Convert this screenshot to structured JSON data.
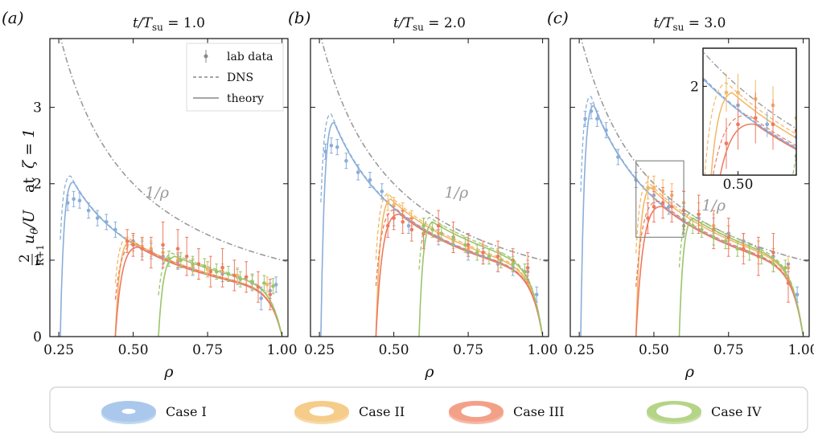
{
  "figure": {
    "ylabel": "2/(R+1) uθ/U  at  ζ = 1",
    "xlabel": "ρ",
    "legend": [
      "lab data",
      "DNS",
      "theory"
    ],
    "annotation": "1/ρ"
  },
  "colors": {
    "case_I": "#8aaed8",
    "case_II": "#f2b766",
    "case_III": "#ee7a60",
    "case_IV": "#9cc46a",
    "reference": "#9a9a9a",
    "legend_gray": "#888888"
  },
  "bottom_legend": {
    "cases": [
      {
        "label": "Case I",
        "color": "#aac8ec",
        "inner": 0.25
      },
      {
        "label": "Case II",
        "color": "#f6cc8a",
        "inner": 0.45
      },
      {
        "label": "Case III",
        "color": "#f3a088",
        "inner": 0.55
      },
      {
        "label": "Case IV",
        "color": "#b5d487",
        "inner": 0.65
      }
    ]
  },
  "chart_data": [
    {
      "type": "line",
      "panel": "(a)",
      "title": "t/T_su = 1.0",
      "xlabel": "ρ",
      "ylabel": "2/(R+1) uθ/U at ζ=1",
      "xlim": [
        0.22,
        1.02
      ],
      "ylim": [
        0,
        3.9
      ],
      "xticks": [
        "0.25",
        "0.50",
        "0.75",
        "1.00"
      ],
      "yticks": [
        "0",
        "1",
        "2",
        "3"
      ],
      "reference_curve": "1/ρ",
      "series": [
        {
          "case": "I",
          "kind": "lab data",
          "x": [
            0.28,
            0.3,
            0.32,
            0.35,
            0.38,
            0.41,
            0.44,
            0.5,
            0.53,
            0.56,
            0.6,
            0.65,
            0.7,
            0.75,
            0.8,
            0.85,
            0.9,
            0.93,
            0.96,
            0.98
          ],
          "y": [
            1.75,
            1.8,
            1.78,
            1.65,
            1.55,
            1.5,
            1.4,
            1.25,
            1.15,
            1.12,
            1.05,
            0.98,
            0.9,
            0.88,
            0.82,
            0.78,
            0.7,
            0.5,
            0.6,
            0.68
          ],
          "err": [
            0.1,
            0.1,
            0.1,
            0.1,
            0.1,
            0.1,
            0.1,
            0.1,
            0.1,
            0.1,
            0.1,
            0.1,
            0.1,
            0.1,
            0.1,
            0.1,
            0.1,
            0.15,
            0.1,
            0.1
          ]
        },
        {
          "case": "II",
          "kind": "lab data",
          "x": [
            0.48,
            0.5,
            0.53,
            0.56,
            0.6,
            0.65,
            0.7,
            0.75,
            0.8,
            0.85,
            0.9,
            0.95
          ],
          "y": [
            1.2,
            1.22,
            1.18,
            1.15,
            1.1,
            1.0,
            0.92,
            0.88,
            0.85,
            0.8,
            0.72,
            0.68
          ],
          "err": [
            0.1,
            0.1,
            0.1,
            0.1,
            0.1,
            0.1,
            0.1,
            0.1,
            0.1,
            0.1,
            0.1,
            0.1
          ]
        },
        {
          "case": "III",
          "kind": "lab data",
          "x": [
            0.48,
            0.5,
            0.53,
            0.56,
            0.6,
            0.65,
            0.68,
            0.72,
            0.76,
            0.8,
            0.84,
            0.88,
            0.92,
            0.96
          ],
          "y": [
            1.25,
            1.2,
            1.15,
            1.1,
            1.2,
            1.15,
            1.05,
            0.95,
            0.85,
            0.9,
            0.8,
            0.78,
            0.65,
            0.55
          ],
          "err": [
            0.15,
            0.15,
            0.15,
            0.2,
            0.3,
            0.25,
            0.25,
            0.2,
            0.2,
            0.25,
            0.2,
            0.2,
            0.2,
            0.2
          ]
        },
        {
          "case": "IV",
          "kind": "lab data",
          "x": [
            0.62,
            0.66,
            0.7,
            0.74,
            0.78,
            0.82,
            0.86,
            0.9,
            0.94,
            0.97
          ],
          "y": [
            1.02,
            1.0,
            0.95,
            0.92,
            0.85,
            0.82,
            0.75,
            0.72,
            0.7,
            0.66
          ],
          "err": [
            0.1,
            0.1,
            0.1,
            0.1,
            0.1,
            0.1,
            0.1,
            0.1,
            0.1,
            0.1
          ]
        },
        {
          "case": "I",
          "kind": "theory",
          "r0": 0.255,
          "peak_x": 0.3,
          "peak_y": 2.02
        },
        {
          "case": "II",
          "kind": "theory",
          "r0": 0.44,
          "peak_x": 0.49,
          "peak_y": 1.25
        },
        {
          "case": "III",
          "kind": "theory",
          "r0": 0.44,
          "peak_x": 0.52,
          "peak_y": 1.17
        },
        {
          "case": "IV",
          "kind": "theory",
          "r0": 0.585,
          "peak_x": 0.64,
          "peak_y": 1.05
        }
      ]
    },
    {
      "type": "line",
      "panel": "(b)",
      "title": "t/T_su = 2.0",
      "xlabel": "ρ",
      "xlim": [
        0.22,
        1.02
      ],
      "ylim": [
        0,
        3.9
      ],
      "xticks": [
        "0.25",
        "0.50",
        "0.75",
        "1.00"
      ],
      "reference_curve": "1/ρ",
      "series": [
        {
          "case": "I",
          "kind": "lab data",
          "x": [
            0.27,
            0.29,
            0.31,
            0.34,
            0.38,
            0.42,
            0.46,
            0.5,
            0.55,
            0.6,
            0.65,
            0.7,
            0.75,
            0.8,
            0.85,
            0.9,
            0.95,
            0.98
          ],
          "y": [
            2.42,
            2.5,
            2.48,
            2.3,
            2.15,
            2.05,
            1.9,
            1.55,
            1.45,
            1.35,
            1.3,
            1.2,
            1.1,
            1.05,
            0.95,
            0.9,
            0.85,
            0.55
          ],
          "err": [
            0.1,
            0.1,
            0.1,
            0.1,
            0.1,
            0.1,
            0.1,
            0.1,
            0.1,
            0.1,
            0.1,
            0.1,
            0.1,
            0.1,
            0.1,
            0.1,
            0.1,
            0.1
          ]
        },
        {
          "case": "II",
          "kind": "lab data",
          "x": [
            0.48,
            0.5,
            0.53,
            0.56,
            0.6,
            0.65,
            0.7,
            0.75,
            0.8,
            0.85,
            0.9,
            0.95
          ],
          "y": [
            1.75,
            1.72,
            1.65,
            1.55,
            1.45,
            1.35,
            1.25,
            1.15,
            1.1,
            1.05,
            0.95,
            0.9
          ],
          "err": [
            0.1,
            0.1,
            0.1,
            0.1,
            0.1,
            0.1,
            0.1,
            0.1,
            0.1,
            0.1,
            0.1,
            0.1
          ]
        },
        {
          "case": "III",
          "kind": "lab data",
          "x": [
            0.48,
            0.5,
            0.53,
            0.56,
            0.6,
            0.65,
            0.7,
            0.75,
            0.8,
            0.85,
            0.9,
            0.95
          ],
          "y": [
            1.45,
            1.55,
            1.5,
            1.4,
            1.35,
            1.45,
            1.3,
            1.2,
            1.1,
            1.05,
            1.0,
            0.9
          ],
          "err": [
            0.15,
            0.15,
            0.15,
            0.15,
            0.2,
            0.2,
            0.2,
            0.15,
            0.15,
            0.2,
            0.15,
            0.2
          ]
        },
        {
          "case": "IV",
          "kind": "lab data",
          "x": [
            0.6,
            0.63,
            0.66,
            0.7,
            0.74,
            0.78,
            0.82,
            0.86,
            0.9,
            0.94
          ],
          "y": [
            1.45,
            1.4,
            1.35,
            1.28,
            1.2,
            1.1,
            1.05,
            1.0,
            0.95,
            0.85
          ],
          "err": [
            0.1,
            0.1,
            0.1,
            0.1,
            0.1,
            0.1,
            0.1,
            0.1,
            0.1,
            0.1
          ]
        },
        {
          "case": "I",
          "kind": "theory",
          "r0": 0.255,
          "peak_x": 0.3,
          "peak_y": 2.8
        },
        {
          "case": "II",
          "kind": "theory",
          "r0": 0.44,
          "peak_x": 0.49,
          "peak_y": 1.8
        },
        {
          "case": "III",
          "kind": "theory",
          "r0": 0.44,
          "peak_x": 0.52,
          "peak_y": 1.6
        },
        {
          "case": "IV",
          "kind": "theory",
          "r0": 0.585,
          "peak_x": 0.63,
          "peak_y": 1.5
        }
      ]
    },
    {
      "type": "line",
      "panel": "(c)",
      "title": "t/T_su = 3.0",
      "xlabel": "ρ",
      "xlim": [
        0.22,
        1.02
      ],
      "ylim": [
        0,
        3.9
      ],
      "xticks": [
        "0.25",
        "0.50",
        "0.75",
        "1.00"
      ],
      "reference_curve": "1/ρ",
      "inset": {
        "xlim": [
          0.44,
          0.6
        ],
        "ylim": [
          1.3,
          2.3
        ],
        "xtick": "0.50",
        "ytick": "2"
      },
      "series": [
        {
          "case": "I",
          "kind": "lab data",
          "x": [
            0.27,
            0.29,
            0.31,
            0.34,
            0.38,
            0.44,
            0.5,
            0.55,
            0.6,
            0.65,
            0.7,
            0.75,
            0.8,
            0.85,
            0.9,
            0.95,
            0.98
          ],
          "y": [
            2.85,
            2.95,
            2.85,
            2.7,
            2.35,
            2.05,
            1.85,
            1.7,
            1.6,
            1.55,
            1.45,
            1.35,
            1.25,
            1.15,
            1.05,
            0.95,
            0.55
          ],
          "err": [
            0.1,
            0.1,
            0.1,
            0.1,
            0.1,
            0.1,
            0.1,
            0.1,
            0.1,
            0.1,
            0.1,
            0.1,
            0.1,
            0.1,
            0.1,
            0.1,
            0.1
          ]
        },
        {
          "case": "II",
          "kind": "lab data",
          "x": [
            0.48,
            0.5,
            0.53,
            0.56,
            0.6,
            0.65,
            0.7,
            0.75,
            0.8,
            0.85,
            0.9,
            0.95
          ],
          "y": [
            1.95,
            1.95,
            1.9,
            1.85,
            1.75,
            1.6,
            1.45,
            1.3,
            1.2,
            1.1,
            1.0,
            0.9
          ],
          "err": [
            0.15,
            0.15,
            0.15,
            0.15,
            0.15,
            0.15,
            0.15,
            0.15,
            0.15,
            0.15,
            0.15,
            0.15
          ]
        },
        {
          "case": "III",
          "kind": "lab data",
          "x": [
            0.48,
            0.5,
            0.53,
            0.56,
            0.6,
            0.65,
            0.7,
            0.75,
            0.8,
            0.85,
            0.9,
            0.95
          ],
          "y": [
            1.55,
            1.7,
            1.75,
            1.7,
            1.65,
            1.6,
            1.4,
            1.3,
            1.15,
            1.05,
            1.1,
            0.7
          ],
          "err": [
            0.2,
            0.2,
            0.2,
            0.2,
            0.25,
            0.25,
            0.25,
            0.25,
            0.2,
            0.25,
            0.25,
            0.25
          ]
        },
        {
          "case": "IV",
          "kind": "lab data",
          "x": [
            0.6,
            0.63,
            0.66,
            0.7,
            0.74,
            0.78,
            0.82,
            0.86,
            0.9,
            0.94
          ],
          "y": [
            1.45,
            1.45,
            1.4,
            1.3,
            1.25,
            1.15,
            1.1,
            1.05,
            0.95,
            0.9
          ],
          "err": [
            0.1,
            0.1,
            0.1,
            0.1,
            0.1,
            0.1,
            0.1,
            0.1,
            0.1,
            0.1
          ]
        },
        {
          "case": "I",
          "kind": "theory",
          "r0": 0.255,
          "peak_x": 0.3,
          "peak_y": 3.02
        },
        {
          "case": "II",
          "kind": "theory",
          "r0": 0.44,
          "peak_x": 0.49,
          "peak_y": 1.95
        },
        {
          "case": "III",
          "kind": "theory",
          "r0": 0.44,
          "peak_x": 0.53,
          "peak_y": 1.7
        },
        {
          "case": "IV",
          "kind": "theory",
          "r0": 0.585,
          "peak_x": 0.63,
          "peak_y": 1.55
        }
      ]
    }
  ]
}
